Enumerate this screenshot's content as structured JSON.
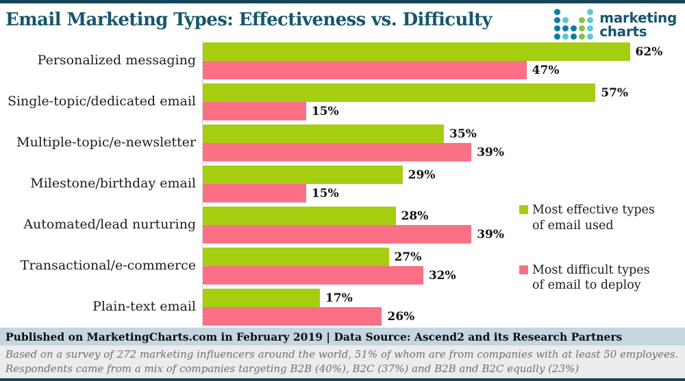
{
  "header": {
    "title": "Email Marketing Types: Effectiveness vs. Difficulty",
    "logo": {
      "line1": "marketing",
      "line2": "charts",
      "dot_colors": {
        "D": "#0e7c9e",
        "L": "#5bc8d8",
        "G": "#82c341"
      },
      "dot_rows": [
        "D...L",
        "DL.GL",
        "DDDGL",
        "DLDGL"
      ]
    }
  },
  "chart_data": {
    "type": "bar",
    "orientation": "horizontal",
    "title": "Email Marketing Types: Effectiveness vs. Difficulty",
    "categories": [
      "Personalized messaging",
      "Single-topic/dedicated email",
      "Multiple-topic/e-newsletter",
      "Milestone/birthday email",
      "Automated/lead nurturing",
      "Transactional/e-commerce",
      "Plain-text email"
    ],
    "series": [
      {
        "name": "Most effective types of email used",
        "color": "#a5ce11",
        "values": [
          62,
          57,
          35,
          29,
          28,
          27,
          17
        ]
      },
      {
        "name": "Most difficult types of email to deploy",
        "color": "#fb7084",
        "values": [
          47,
          15,
          39,
          15,
          39,
          32,
          26
        ]
      }
    ],
    "value_suffix": "%",
    "xlim": [
      0,
      70
    ],
    "grid": false,
    "legend_position": "right",
    "xlabel": "",
    "ylabel": ""
  },
  "footer": {
    "published": "Published on MarketingCharts.com in February 2019 | Data Source: Ascend2 and its Research Partners",
    "notes": [
      "Based on a survey of 272 marketing influencers around the world, 51% of whom are from companies with at least 50 employees.",
      "Respondents came from a mix of companies targeting B2B (40%), B2C (37%) and B2B and B2C equally (23%)"
    ]
  },
  "colors": {
    "accent_border": "#16465a",
    "title_text": "#17566c",
    "bar_effective": "#a5ce11",
    "bar_difficult": "#fb7084",
    "published_bg": "#c5d6e0",
    "notes_bg": "#ececec",
    "notes_text": "#6f6f6f",
    "axis_dash": "#c9c9c9"
  }
}
